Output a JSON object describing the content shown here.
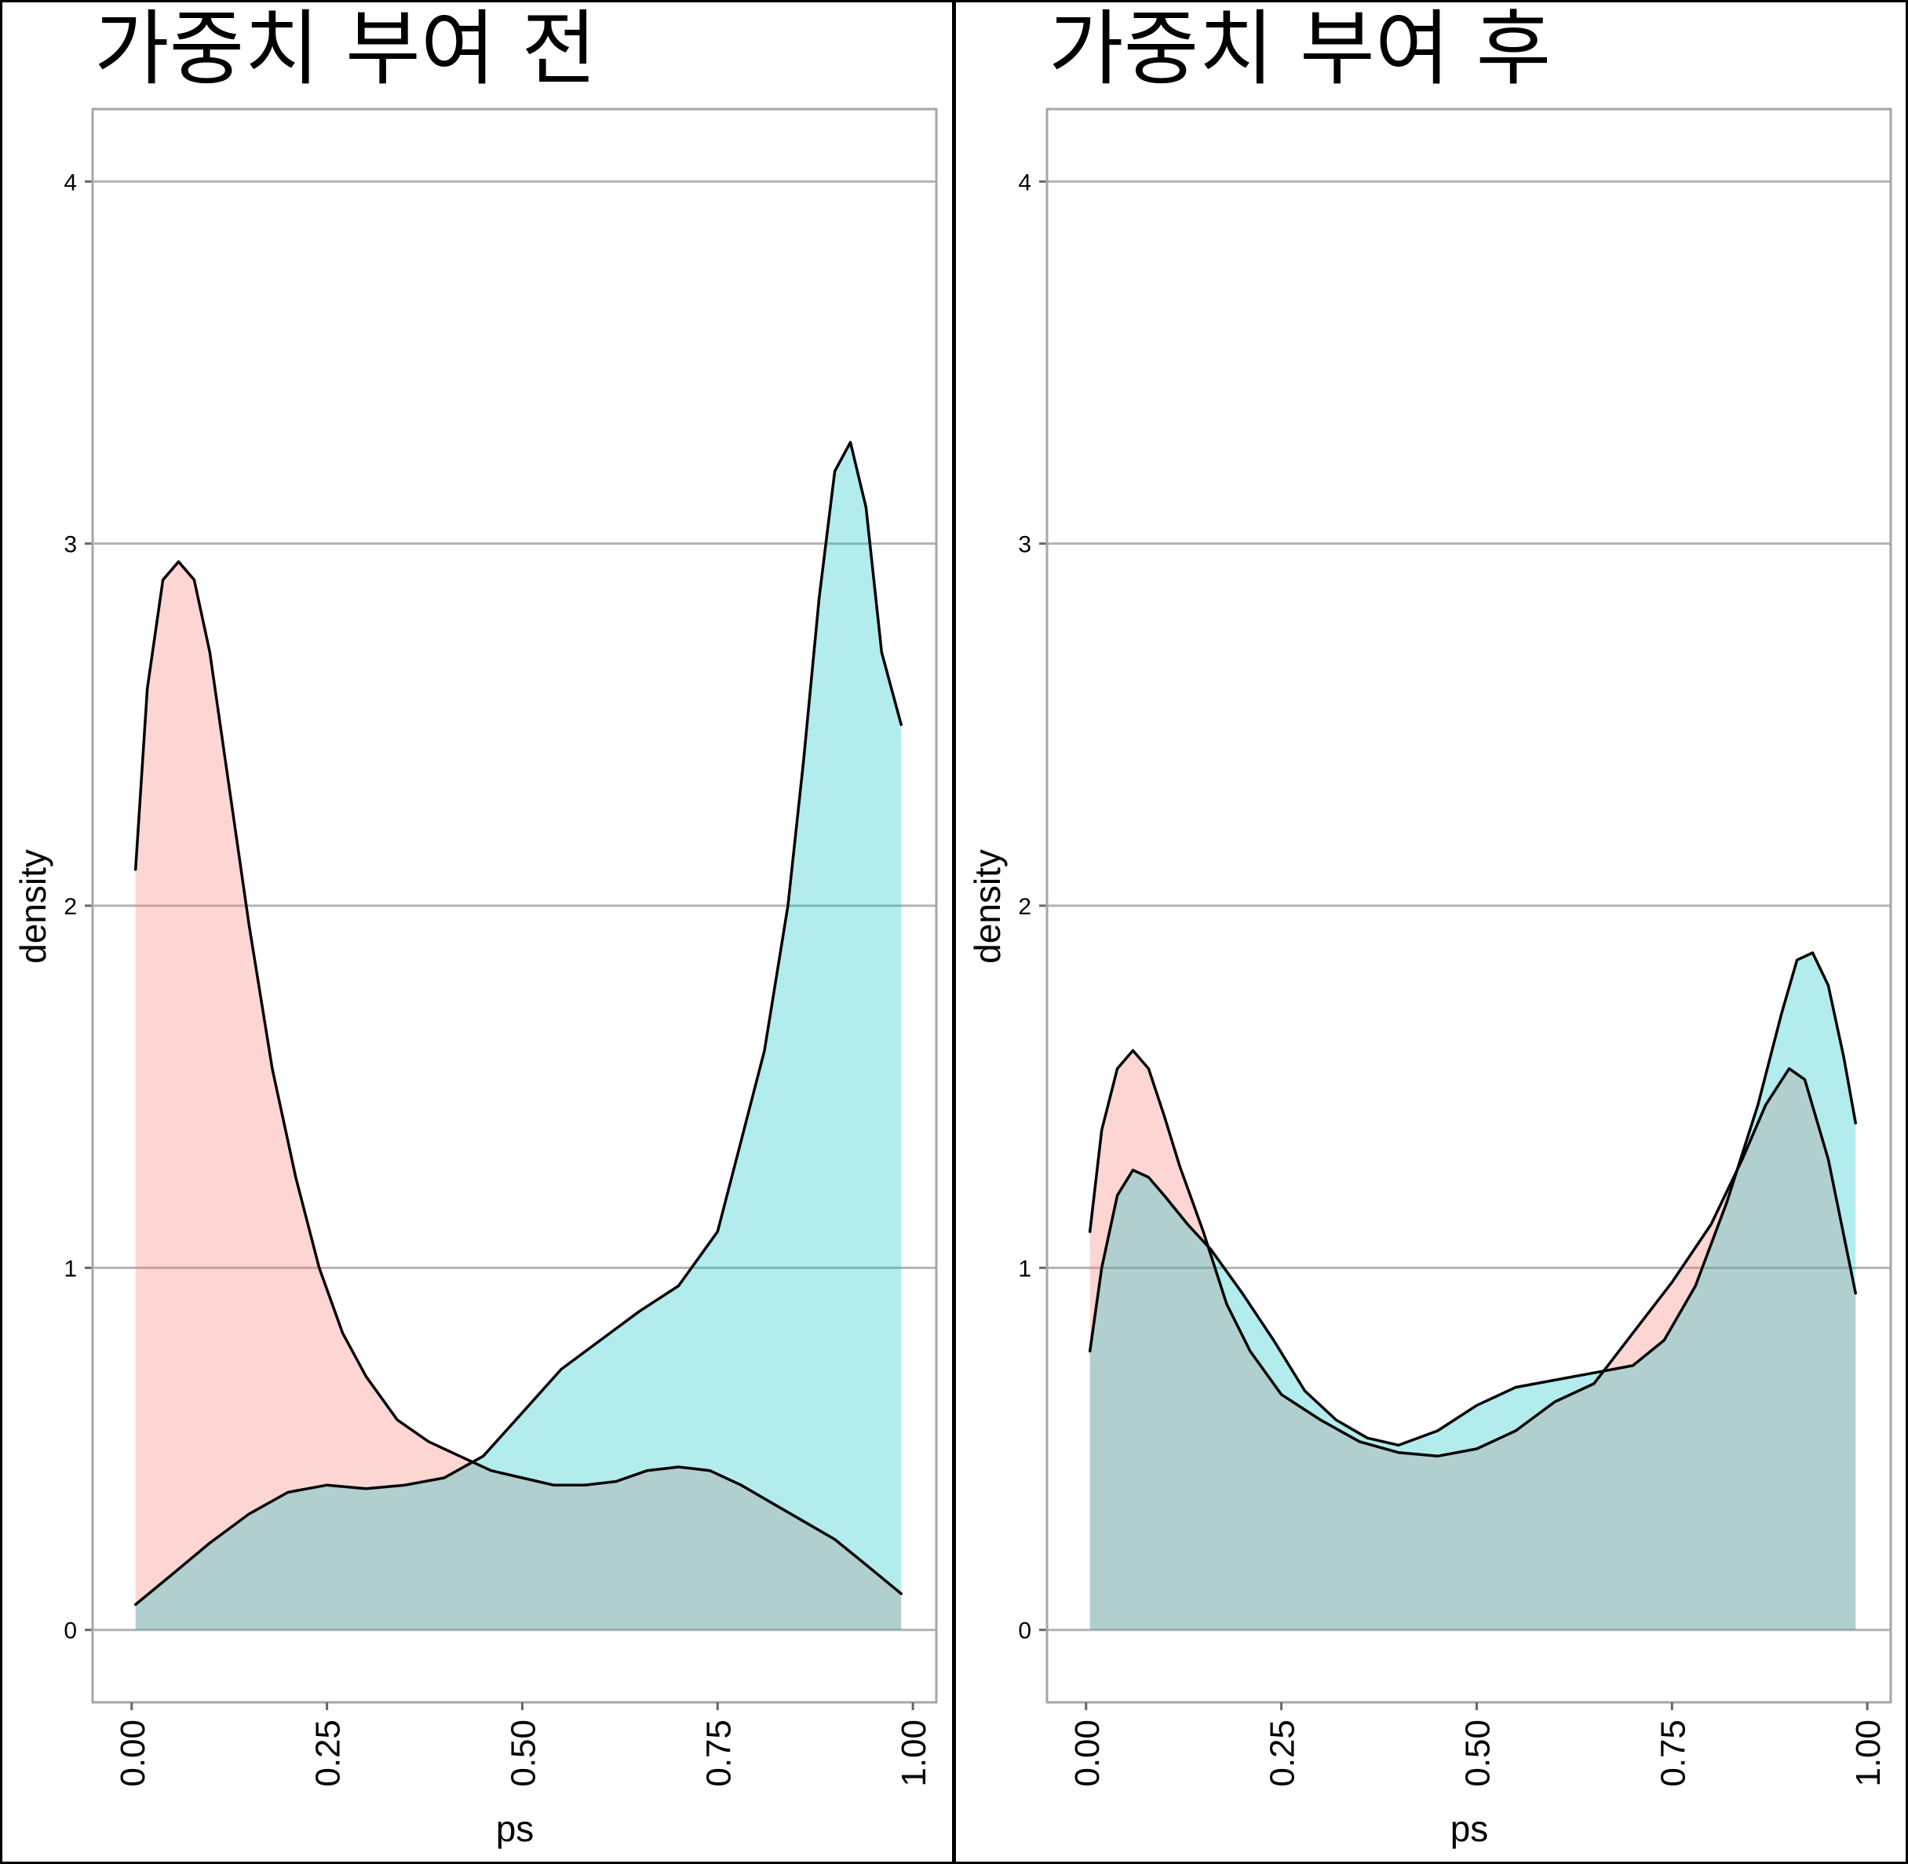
{
  "colors": {
    "group0_fill": "#f8766d",
    "group1_fill": "#00bfc4",
    "fill_opacity": 0.3,
    "grid": "#b3b3b3",
    "panel_border": "#a6a6a6",
    "outline": "#000000"
  },
  "chart_data": [
    {
      "type": "area",
      "title": "가중치 부여 전",
      "xlabel": "ps",
      "ylabel": "density",
      "xlim": [
        -0.05,
        1.03
      ],
      "ylim": [
        -0.2,
        4.2
      ],
      "x_ticks": [
        "0.00",
        "0.25",
        "0.50",
        "0.75",
        "1.00"
      ],
      "x_tick_values": [
        0,
        0.25,
        0.5,
        0.75,
        1.0
      ],
      "y_ticks": [
        "0",
        "1",
        "2",
        "3",
        "4"
      ],
      "y_tick_values": [
        0,
        1,
        2,
        3,
        4
      ],
      "grid": "horizontal",
      "legend": "none",
      "series": [
        {
          "color": "#f8766d",
          "x": [
            0.005,
            0.02,
            0.04,
            0.06,
            0.08,
            0.1,
            0.12,
            0.15,
            0.18,
            0.21,
            0.24,
            0.27,
            0.3,
            0.34,
            0.38,
            0.42,
            0.46,
            0.5,
            0.54,
            0.58,
            0.62,
            0.66,
            0.7,
            0.74,
            0.78,
            0.82,
            0.86,
            0.9,
            0.94,
            0.985
          ],
          "y": [
            2.1,
            2.6,
            2.9,
            2.95,
            2.9,
            2.7,
            2.4,
            1.95,
            1.55,
            1.25,
            1.0,
            0.82,
            0.7,
            0.58,
            0.52,
            0.48,
            0.44,
            0.42,
            0.4,
            0.4,
            0.41,
            0.44,
            0.45,
            0.44,
            0.4,
            0.35,
            0.3,
            0.25,
            0.18,
            0.1
          ]
        },
        {
          "color": "#00bfc4",
          "x": [
            0.005,
            0.05,
            0.1,
            0.15,
            0.2,
            0.25,
            0.3,
            0.35,
            0.4,
            0.45,
            0.5,
            0.55,
            0.6,
            0.65,
            0.7,
            0.75,
            0.78,
            0.81,
            0.84,
            0.86,
            0.88,
            0.9,
            0.92,
            0.94,
            0.96,
            0.985
          ],
          "y": [
            0.07,
            0.15,
            0.24,
            0.32,
            0.38,
            0.4,
            0.39,
            0.4,
            0.42,
            0.48,
            0.6,
            0.72,
            0.8,
            0.88,
            0.95,
            1.1,
            1.35,
            1.6,
            2.0,
            2.4,
            2.85,
            3.2,
            3.28,
            3.1,
            2.7,
            2.5
          ]
        }
      ]
    },
    {
      "type": "area",
      "title": "가중치 부여 후",
      "xlabel": "ps",
      "ylabel": "density",
      "xlim": [
        -0.05,
        1.03
      ],
      "ylim": [
        -0.2,
        4.2
      ],
      "x_ticks": [
        "0.00",
        "0.25",
        "0.50",
        "0.75",
        "1.00"
      ],
      "x_tick_values": [
        0,
        0.25,
        0.5,
        0.75,
        1.0
      ],
      "y_ticks": [
        "0",
        "1",
        "2",
        "3",
        "4"
      ],
      "y_tick_values": [
        0,
        1,
        2,
        3,
        4
      ],
      "grid": "horizontal",
      "legend": "none",
      "series": [
        {
          "color": "#f8766d",
          "x": [
            0.005,
            0.02,
            0.04,
            0.06,
            0.08,
            0.1,
            0.12,
            0.15,
            0.18,
            0.21,
            0.25,
            0.3,
            0.35,
            0.4,
            0.45,
            0.5,
            0.55,
            0.6,
            0.65,
            0.7,
            0.75,
            0.8,
            0.84,
            0.87,
            0.9,
            0.92,
            0.95,
            0.985
          ],
          "y": [
            1.1,
            1.38,
            1.55,
            1.6,
            1.55,
            1.42,
            1.28,
            1.1,
            0.9,
            0.77,
            0.65,
            0.58,
            0.52,
            0.49,
            0.48,
            0.5,
            0.55,
            0.63,
            0.68,
            0.82,
            0.96,
            1.12,
            1.3,
            1.45,
            1.55,
            1.52,
            1.3,
            0.93
          ]
        },
        {
          "color": "#00bfc4",
          "x": [
            0.005,
            0.02,
            0.04,
            0.06,
            0.08,
            0.1,
            0.13,
            0.16,
            0.2,
            0.24,
            0.28,
            0.32,
            0.36,
            0.4,
            0.45,
            0.5,
            0.55,
            0.6,
            0.65,
            0.7,
            0.74,
            0.78,
            0.82,
            0.86,
            0.89,
            0.91,
            0.93,
            0.95,
            0.97,
            0.985
          ],
          "y": [
            0.77,
            1.0,
            1.2,
            1.27,
            1.25,
            1.2,
            1.12,
            1.05,
            0.93,
            0.8,
            0.66,
            0.58,
            0.53,
            0.51,
            0.55,
            0.62,
            0.67,
            0.69,
            0.71,
            0.73,
            0.8,
            0.95,
            1.18,
            1.45,
            1.7,
            1.85,
            1.87,
            1.78,
            1.58,
            1.4
          ]
        }
      ]
    }
  ]
}
